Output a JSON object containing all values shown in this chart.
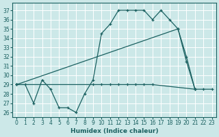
{
  "xlabel": "Humidex (Indice chaleur)",
  "background_color": "#cce8e8",
  "line_color": "#1a6060",
  "grid_color": "#aadddd",
  "xlim": [
    -0.5,
    23.5
  ],
  "ylim": [
    25.5,
    37.8
  ],
  "yticks": [
    26,
    27,
    28,
    29,
    30,
    31,
    32,
    33,
    34,
    35,
    36,
    37
  ],
  "xticks": [
    0,
    1,
    2,
    3,
    4,
    5,
    6,
    7,
    8,
    9,
    10,
    11,
    12,
    13,
    14,
    15,
    16,
    17,
    18,
    19,
    20,
    21,
    22,
    23
  ],
  "line1_x": [
    0,
    1,
    2,
    3,
    4,
    5,
    6,
    7,
    8,
    9,
    10,
    11,
    12,
    13,
    14,
    15,
    16,
    17,
    18,
    19,
    20,
    21
  ],
  "line1_y": [
    29.0,
    29.0,
    27.0,
    29.5,
    28.5,
    26.5,
    26.5,
    26.0,
    28.0,
    29.5,
    34.5,
    35.5,
    37.0,
    37.0,
    37.0,
    37.0,
    36.0,
    37.0,
    36.0,
    35.0,
    31.5,
    28.5
  ],
  "line2_x": [
    0,
    19,
    20,
    21
  ],
  "line2_y": [
    29.0,
    35.0,
    32.0,
    28.5
  ],
  "line3_x": [
    0,
    9,
    10,
    11,
    12,
    13,
    14,
    15,
    16,
    21,
    22,
    23
  ],
  "line3_y": [
    29.0,
    29.0,
    29.0,
    29.0,
    29.0,
    29.0,
    29.0,
    29.0,
    29.0,
    28.5,
    28.5,
    28.5
  ]
}
